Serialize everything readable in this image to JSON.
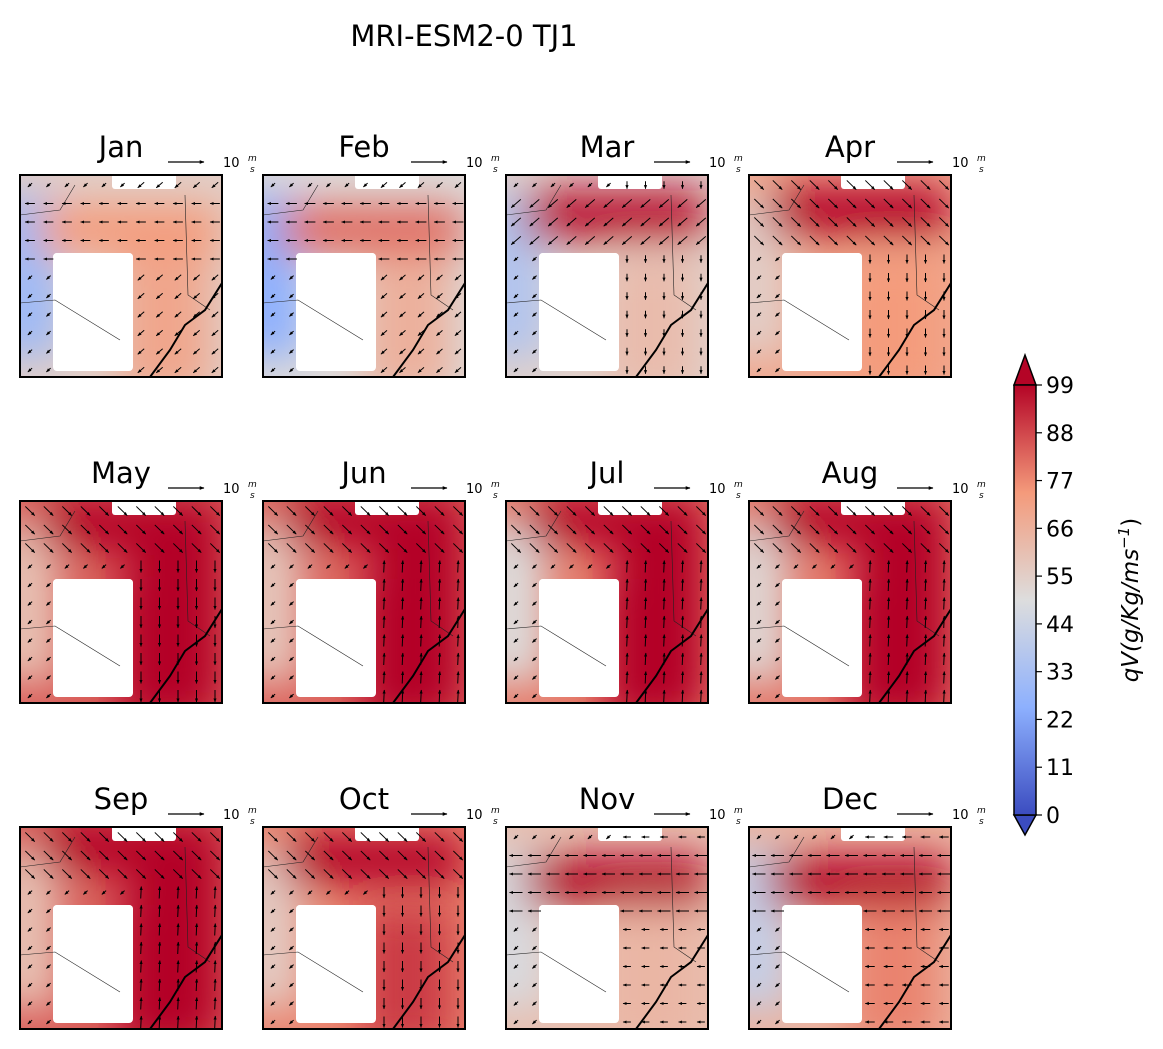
{
  "title": "MRI-ESM2-0 TJ1",
  "chart_data": {
    "type": "heatmap",
    "title": "MRI-ESM2-0 TJ1",
    "panels": [
      "Jan",
      "Feb",
      "Mar",
      "Apr",
      "May",
      "Jun",
      "Jul",
      "Aug",
      "Sep",
      "Oct",
      "Nov",
      "Dec"
    ],
    "quiver_key": {
      "label_base": "10",
      "label_num": "m",
      "label_den": "s",
      "magnitude": 10
    },
    "colorbar": {
      "label": "qV(g/Kg/ms−1)",
      "label_main": "qV(g/Kg/ms",
      "label_sup": "−1",
      "label_close": ")",
      "ticks": [
        "0",
        "11",
        "22",
        "33",
        "44",
        "55",
        "66",
        "77",
        "88",
        "99"
      ],
      "vmin": 0,
      "vmax": 99,
      "colormap": "coolwarm",
      "extend": "both"
    },
    "colors": {
      "low": "#3b4cc0",
      "mid": "#dddddd",
      "high": "#b40426"
    },
    "monthly_intensity": {
      "Jan": {
        "jet": 74,
        "south": 70,
        "west": 30,
        "jet_row": 0.27,
        "jet_dir": "westward",
        "south_dir": "south-westward"
      },
      "Feb": {
        "jet": 82,
        "south": 66,
        "west": 25,
        "jet_row": 0.27,
        "jet_dir": "westward",
        "south_dir": "south-westward"
      },
      "Mar": {
        "jet": 97,
        "south": 62,
        "west": 36,
        "jet_row": 0.2,
        "jet_dir": "south-westward",
        "south_dir": "southward"
      },
      "Apr": {
        "jet": 99,
        "south": 74,
        "west": 55,
        "jet_row": 0.18,
        "jet_dir": "south-eastward",
        "south_dir": "southward"
      },
      "May": {
        "jet": 99,
        "south": 99,
        "west": 60,
        "jet_row": 0.12,
        "jet_dir": "south-eastward",
        "south_dir": "southward"
      },
      "Jun": {
        "jet": 99,
        "south": 99,
        "west": 58,
        "jet_row": 0.1,
        "jet_dir": "south-eastward",
        "south_dir": "northward"
      },
      "Jul": {
        "jet": 99,
        "south": 99,
        "west": 50,
        "jet_row": 0.1,
        "jet_dir": "south-eastward",
        "south_dir": "northward"
      },
      "Aug": {
        "jet": 99,
        "south": 99,
        "west": 52,
        "jet_row": 0.1,
        "jet_dir": "south-eastward",
        "south_dir": "northward"
      },
      "Sep": {
        "jet": 99,
        "south": 99,
        "west": 60,
        "jet_row": 0.1,
        "jet_dir": "south-eastward",
        "south_dir": "northward"
      },
      "Oct": {
        "jet": 99,
        "south": 90,
        "west": 56,
        "jet_row": 0.16,
        "jet_dir": "south-eastward",
        "south_dir": "southward"
      },
      "Nov": {
        "jet": 99,
        "south": 64,
        "west": 48,
        "jet_row": 0.27,
        "jet_dir": "westward",
        "south_dir": "westward"
      },
      "Dec": {
        "jet": 99,
        "south": 78,
        "west": 42,
        "jet_row": 0.27,
        "jet_dir": "westward",
        "south_dir": "westward"
      }
    }
  }
}
